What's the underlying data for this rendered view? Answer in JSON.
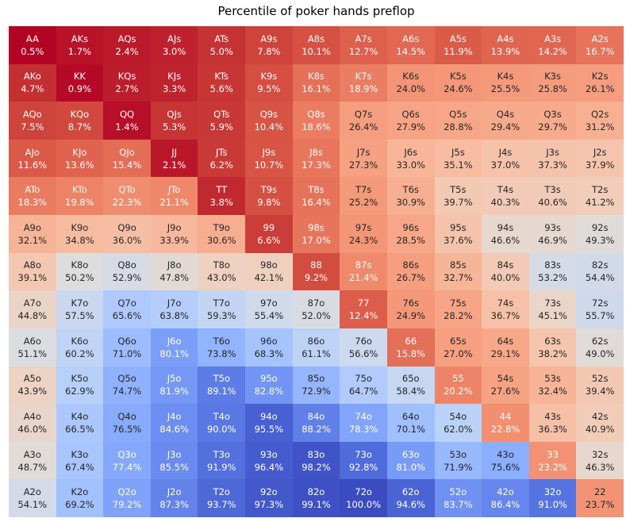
{
  "chart_data": {
    "type": "heatmap",
    "title": "Percentile of poker hands preflop",
    "row_ranks": [
      "A",
      "K",
      "Q",
      "J",
      "T",
      "9",
      "8",
      "7",
      "6",
      "5",
      "4",
      "3",
      "2"
    ],
    "col_ranks": [
      "A",
      "K",
      "Q",
      "J",
      "T",
      "9",
      "8",
      "7",
      "6",
      "5",
      "4",
      "3",
      "2"
    ],
    "cell_labels": [
      [
        "AA",
        "AKs",
        "AQs",
        "AJs",
        "ATs",
        "A9s",
        "A8s",
        "A7s",
        "A6s",
        "A5s",
        "A4s",
        "A3s",
        "A2s"
      ],
      [
        "AKo",
        "KK",
        "KQs",
        "KJs",
        "KTs",
        "K9s",
        "K8s",
        "K7s",
        "K6s",
        "K5s",
        "K4s",
        "K3s",
        "K2s"
      ],
      [
        "AQo",
        "KQo",
        "QQ",
        "QJs",
        "QTs",
        "Q9s",
        "Q8s",
        "Q7s",
        "Q6s",
        "Q5s",
        "Q4s",
        "Q3s",
        "Q2s"
      ],
      [
        "AJo",
        "KJo",
        "QJo",
        "JJ",
        "JTs",
        "J9s",
        "J8s",
        "J7s",
        "J6s",
        "J5s",
        "J4s",
        "J3s",
        "J2s"
      ],
      [
        "ATo",
        "KTo",
        "QTo",
        "JTo",
        "TT",
        "T9s",
        "T8s",
        "T7s",
        "T6s",
        "T5s",
        "T4s",
        "T3s",
        "T2s"
      ],
      [
        "A9o",
        "K9o",
        "Q9o",
        "J9o",
        "T9o",
        "99",
        "98s",
        "97s",
        "96s",
        "95s",
        "94s",
        "93s",
        "92s"
      ],
      [
        "A8o",
        "K8o",
        "Q8o",
        "J8o",
        "T8o",
        "98o",
        "88",
        "87s",
        "86s",
        "85s",
        "84s",
        "83s",
        "82s"
      ],
      [
        "A7o",
        "K7o",
        "Q7o",
        "J7o",
        "T7o",
        "97o",
        "87o",
        "77",
        "76s",
        "75s",
        "74s",
        "73s",
        "72s"
      ],
      [
        "A6o",
        "K6o",
        "Q6o",
        "J6o",
        "T6o",
        "96o",
        "86o",
        "76o",
        "66",
        "65s",
        "64s",
        "63s",
        "62s"
      ],
      [
        "A5o",
        "K5o",
        "Q5o",
        "J5o",
        "T5o",
        "95o",
        "85o",
        "75o",
        "65o",
        "55",
        "54s",
        "53s",
        "52s"
      ],
      [
        "A4o",
        "K4o",
        "Q4o",
        "J4o",
        "T4o",
        "94o",
        "84o",
        "74o",
        "64o",
        "54o",
        "44",
        "43s",
        "42s"
      ],
      [
        "A3o",
        "K3o",
        "Q3o",
        "J3o",
        "T3o",
        "93o",
        "83o",
        "73o",
        "63o",
        "53o",
        "43o",
        "33",
        "32s"
      ],
      [
        "A2o",
        "K2o",
        "Q2o",
        "J2o",
        "T2o",
        "92o",
        "82o",
        "72o",
        "62o",
        "52o",
        "42o",
        "32o",
        "22"
      ]
    ],
    "values_percent": [
      [
        0.5,
        1.7,
        2.4,
        3.0,
        5.0,
        7.8,
        10.1,
        12.7,
        14.5,
        11.9,
        13.9,
        14.2,
        16.7
      ],
      [
        4.7,
        0.9,
        2.7,
        3.3,
        5.6,
        9.5,
        16.1,
        18.9,
        24.0,
        24.6,
        25.5,
        25.8,
        26.1
      ],
      [
        7.5,
        8.7,
        1.4,
        5.3,
        5.9,
        10.4,
        18.6,
        26.4,
        27.9,
        28.8,
        29.4,
        29.7,
        31.2
      ],
      [
        11.6,
        13.6,
        15.4,
        2.1,
        6.2,
        10.7,
        17.3,
        27.3,
        33.0,
        35.1,
        37.0,
        37.3,
        37.9
      ],
      [
        18.3,
        19.8,
        22.3,
        21.1,
        3.8,
        9.8,
        16.4,
        25.2,
        30.9,
        39.7,
        40.3,
        40.6,
        41.2
      ],
      [
        32.1,
        34.8,
        36.0,
        33.9,
        30.6,
        6.6,
        17.0,
        24.3,
        28.5,
        37.6,
        46.6,
        46.9,
        49.3
      ],
      [
        39.1,
        50.2,
        52.9,
        47.8,
        43.0,
        42.1,
        9.2,
        21.4,
        26.7,
        32.7,
        40.0,
        53.2,
        54.4
      ],
      [
        44.8,
        57.5,
        65.6,
        63.8,
        59.3,
        55.4,
        52.0,
        12.4,
        24.9,
        28.2,
        36.7,
        45.1,
        55.7
      ],
      [
        51.1,
        60.2,
        71.0,
        80.1,
        73.8,
        68.3,
        61.1,
        56.6,
        15.8,
        27.0,
        29.1,
        38.2,
        49.0
      ],
      [
        43.9,
        62.9,
        74.7,
        81.9,
        89.1,
        82.8,
        72.9,
        64.7,
        58.4,
        20.2,
        27.6,
        32.4,
        39.4
      ],
      [
        46.0,
        66.5,
        76.5,
        84.6,
        90.0,
        95.5,
        88.2,
        78.3,
        70.1,
        62.0,
        22.8,
        36.3,
        40.9
      ],
      [
        48.7,
        67.4,
        77.4,
        85.5,
        91.9,
        96.4,
        98.2,
        92.8,
        81.0,
        71.9,
        75.6,
        23.2,
        46.3
      ],
      [
        54.1,
        69.2,
        79.2,
        87.3,
        93.7,
        97.3,
        99.1,
        100.0,
        94.6,
        83.7,
        86.4,
        91.0,
        23.7
      ]
    ],
    "value_suffix": "%",
    "value_decimals": 1,
    "vmin": 0.5,
    "vmax": 100.0,
    "colormap": "coolwarm_r",
    "color_strongest_hand_hex": "#b40426",
    "color_midpoint_hex": "#dddddd",
    "color_weakest_hand_hex": "#3b4cc0",
    "annotation_text_dark_hex": "#262626",
    "annotation_text_light_hex": "#ffffff",
    "legend_position": "none",
    "grid": false,
    "axis_tick_labels": "none",
    "xlabel": "",
    "ylabel": ""
  }
}
